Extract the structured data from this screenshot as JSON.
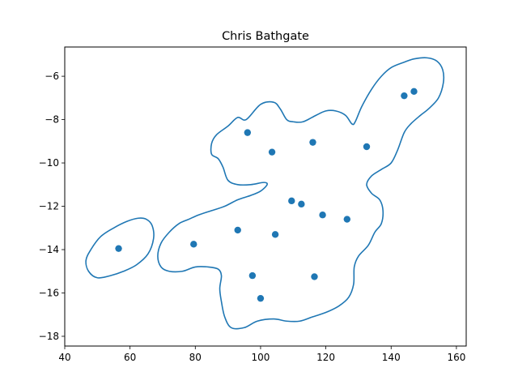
{
  "chart_data": {
    "type": "scatter",
    "title": "Chris Bathgate",
    "xlabel": "",
    "ylabel": "",
    "xlim": [
      40,
      163
    ],
    "ylim": [
      -18.45,
      -4.65
    ],
    "x_ticks": [
      40,
      60,
      80,
      100,
      120,
      140,
      160
    ],
    "y_ticks": [
      -18,
      -16,
      -14,
      -12,
      -10,
      -8,
      -6
    ],
    "x_tick_labels": [
      "40",
      "60",
      "80",
      "100",
      "120",
      "140",
      "160"
    ],
    "y_tick_labels": [
      "−18",
      "−16",
      "−14",
      "−12",
      "−10",
      "−8",
      "−6"
    ],
    "grid": false,
    "color": "#1f77b4",
    "points": [
      {
        "x": 56.5,
        "y": -13.95
      },
      {
        "x": 79.5,
        "y": -13.75
      },
      {
        "x": 93.0,
        "y": -13.1
      },
      {
        "x": 96.0,
        "y": -8.6
      },
      {
        "x": 97.5,
        "y": -15.2
      },
      {
        "x": 100.0,
        "y": -16.25
      },
      {
        "x": 103.5,
        "y": -9.5
      },
      {
        "x": 104.5,
        "y": -13.3
      },
      {
        "x": 109.5,
        "y": -11.75
      },
      {
        "x": 112.5,
        "y": -11.9
      },
      {
        "x": 116.0,
        "y": -9.05
      },
      {
        "x": 116.5,
        "y": -15.25
      },
      {
        "x": 119.0,
        "y": -12.4
      },
      {
        "x": 126.5,
        "y": -12.6
      },
      {
        "x": 132.5,
        "y": -9.25
      },
      {
        "x": 144.0,
        "y": -6.9
      },
      {
        "x": 147.0,
        "y": -6.7
      }
    ],
    "contours": [
      [
        [
          95.6,
          -8.0
        ],
        [
          100,
          -7.3
        ],
        [
          104,
          -7.2
        ],
        [
          106,
          -7.5
        ],
        [
          108,
          -8.0
        ],
        [
          110,
          -8.1
        ],
        [
          113,
          -8.1
        ],
        [
          117,
          -7.8
        ],
        [
          120,
          -7.6
        ],
        [
          123,
          -7.6
        ],
        [
          126,
          -7.8
        ],
        [
          128,
          -8.2
        ],
        [
          129,
          -8.1
        ],
        [
          131,
          -7.4
        ],
        [
          134,
          -6.6
        ],
        [
          137,
          -6.0
        ],
        [
          140,
          -5.6
        ],
        [
          144,
          -5.35
        ],
        [
          147,
          -5.2
        ],
        [
          151,
          -5.15
        ],
        [
          154,
          -5.3
        ],
        [
          155.8,
          -5.7
        ],
        [
          156,
          -6.3
        ],
        [
          154.5,
          -7.0
        ],
        [
          151.5,
          -7.5
        ],
        [
          149,
          -7.8
        ],
        [
          146,
          -8.2
        ],
        [
          144,
          -8.6
        ],
        [
          142,
          -9.4
        ],
        [
          140,
          -10.0
        ],
        [
          137,
          -10.3
        ],
        [
          134,
          -10.6
        ],
        [
          132.5,
          -11.0
        ],
        [
          134,
          -11.4
        ],
        [
          136.5,
          -11.7
        ],
        [
          137.5,
          -12.2
        ],
        [
          137,
          -12.8
        ],
        [
          135,
          -13.2
        ],
        [
          133,
          -13.8
        ],
        [
          130,
          -14.3
        ],
        [
          128.7,
          -14.8
        ],
        [
          128.5,
          -15.6
        ],
        [
          127,
          -16.2
        ],
        [
          124,
          -16.6
        ],
        [
          120,
          -16.9
        ],
        [
          116,
          -17.1
        ],
        [
          112,
          -17.3
        ],
        [
          108,
          -17.3
        ],
        [
          104,
          -17.2
        ],
        [
          99,
          -17.3
        ],
        [
          95,
          -17.6
        ],
        [
          91,
          -17.6
        ],
        [
          89,
          -17.1
        ],
        [
          88,
          -16.4
        ],
        [
          87.5,
          -15.8
        ],
        [
          88,
          -15.2
        ],
        [
          87,
          -14.9
        ],
        [
          84,
          -14.8
        ],
        [
          80,
          -14.8
        ],
        [
          76,
          -15.0
        ],
        [
          72,
          -15.0
        ],
        [
          69.5,
          -14.8
        ],
        [
          68.5,
          -14.3
        ],
        [
          69.5,
          -13.7
        ],
        [
          72,
          -13.2
        ],
        [
          75,
          -12.8
        ],
        [
          78,
          -12.6
        ],
        [
          81,
          -12.4
        ],
        [
          85,
          -12.2
        ],
        [
          89,
          -12.0
        ],
        [
          93,
          -11.7
        ],
        [
          97,
          -11.5
        ],
        [
          100,
          -11.3
        ],
        [
          102,
          -11.0
        ],
        [
          101,
          -10.9
        ],
        [
          97,
          -11.0
        ],
        [
          93,
          -11.0
        ],
        [
          90,
          -10.8
        ],
        [
          88.5,
          -10.2
        ],
        [
          87,
          -9.8
        ],
        [
          85,
          -9.6
        ],
        [
          85,
          -9.1
        ],
        [
          86.5,
          -8.7
        ],
        [
          90,
          -8.3
        ],
        [
          93,
          -7.9
        ],
        [
          95.6,
          -8.0
        ]
      ],
      [
        [
          62.5,
          -12.55
        ],
        [
          65,
          -12.6
        ],
        [
          66.8,
          -12.9
        ],
        [
          67.2,
          -13.5
        ],
        [
          65.5,
          -14.2
        ],
        [
          62,
          -14.7
        ],
        [
          58,
          -15.0
        ],
        [
          54,
          -15.2
        ],
        [
          50,
          -15.3
        ],
        [
          47.3,
          -15.0
        ],
        [
          46.5,
          -14.5
        ],
        [
          48,
          -14.0
        ],
        [
          51,
          -13.4
        ],
        [
          55,
          -13.0
        ],
        [
          59,
          -12.7
        ],
        [
          62.5,
          -12.55
        ]
      ]
    ]
  }
}
